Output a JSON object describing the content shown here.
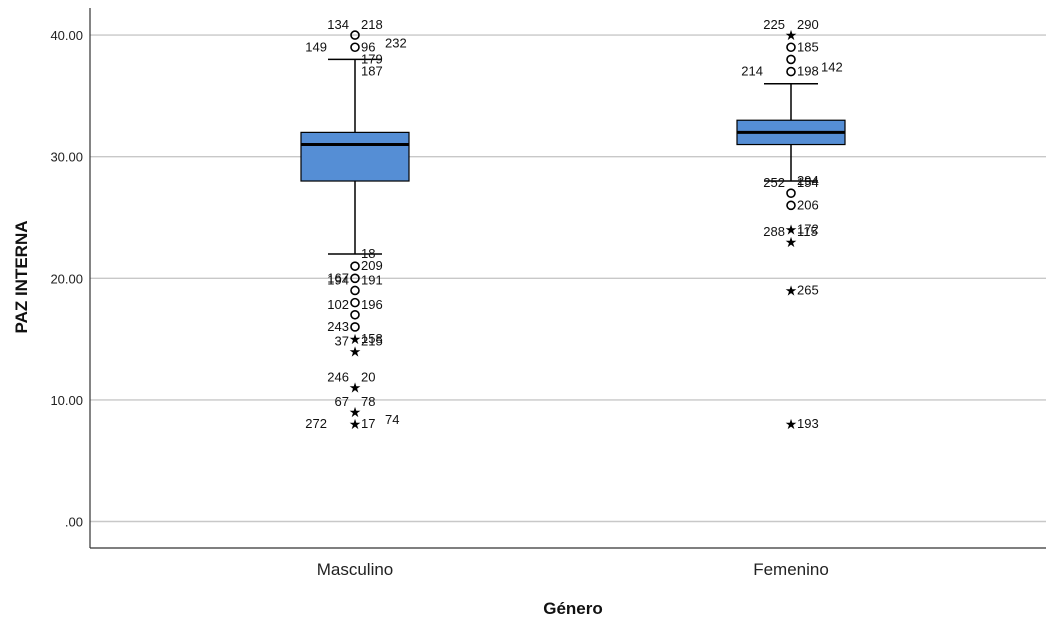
{
  "chart_data": {
    "type": "boxplot",
    "ylabel": "PAZ INTERNA",
    "xlabel": "Género",
    "ylim": [
      -2,
      42
    ],
    "yticks": [
      0,
      10,
      20,
      30,
      40
    ],
    "ytick_labels": [
      ".00",
      "10.00",
      "20.00",
      "30.00",
      "40.00"
    ],
    "grid": true,
    "box_color": "#558ed5",
    "categories": [
      "Masculino",
      "Femenino"
    ],
    "groups": [
      {
        "category": "Masculino",
        "whisker_low": 22,
        "q1": 28,
        "median": 31,
        "q3": 32,
        "whisker_high": 38,
        "points": [
          {
            "y": 40,
            "kind": "outlier",
            "labels": [
              "134",
              "218"
            ]
          },
          {
            "y": 39,
            "kind": "outlier",
            "labels": [
              "149",
              "96",
              "232"
            ]
          },
          {
            "y": 38,
            "kind": "label",
            "labels": [
              "179"
            ]
          },
          {
            "y": 37,
            "kind": "label",
            "labels": [
              "187"
            ]
          },
          {
            "y": 22,
            "kind": "label",
            "labels": [
              "18"
            ]
          },
          {
            "y": 21,
            "kind": "outlier",
            "labels": [
              "209"
            ]
          },
          {
            "y": 20,
            "kind": "outlier",
            "labels": [
              "167"
            ]
          },
          {
            "y": 19,
            "kind": "outlier",
            "labels": [
              "194",
              "191"
            ]
          },
          {
            "y": 18,
            "kind": "outlier",
            "labels": []
          },
          {
            "y": 17,
            "kind": "outlier",
            "labels": [
              "102",
              "196"
            ]
          },
          {
            "y": 16,
            "kind": "outlier",
            "labels": [
              "243"
            ]
          },
          {
            "y": 15,
            "kind": "extreme",
            "labels": [
              "158"
            ]
          },
          {
            "y": 14,
            "kind": "extreme",
            "labels": [
              "37",
              "215"
            ]
          },
          {
            "y": 11,
            "kind": "extreme",
            "labels": [
              "246",
              "20"
            ]
          },
          {
            "y": 9,
            "kind": "extreme",
            "labels": [
              "67",
              "78"
            ]
          },
          {
            "y": 8,
            "kind": "extreme",
            "labels": [
              "272",
              "17",
              "74"
            ]
          }
        ]
      },
      {
        "category": "Femenino",
        "whisker_low": 28,
        "q1": 31,
        "median": 32,
        "q3": 33,
        "whisker_high": 36,
        "points": [
          {
            "y": 40,
            "kind": "extreme",
            "labels": [
              "225",
              "290"
            ]
          },
          {
            "y": 39,
            "kind": "outlier",
            "labels": [
              "185"
            ]
          },
          {
            "y": 38,
            "kind": "outlier",
            "labels": []
          },
          {
            "y": 37,
            "kind": "outlier",
            "labels": [
              "214",
              "198",
              "142"
            ]
          },
          {
            "y": 28,
            "kind": "label",
            "labels": [
              "294"
            ]
          },
          {
            "y": 27,
            "kind": "outlier",
            "labels": [
              "252",
              "154"
            ]
          },
          {
            "y": 26,
            "kind": "outlier",
            "labels": [
              "206"
            ]
          },
          {
            "y": 24,
            "kind": "extreme",
            "labels": [
              "172"
            ]
          },
          {
            "y": 23,
            "kind": "extreme",
            "labels": [
              "288",
              "115"
            ]
          },
          {
            "y": 19,
            "kind": "extreme",
            "labels": [
              "265"
            ]
          },
          {
            "y": 8,
            "kind": "extreme",
            "labels": [
              "193"
            ]
          }
        ]
      }
    ]
  }
}
